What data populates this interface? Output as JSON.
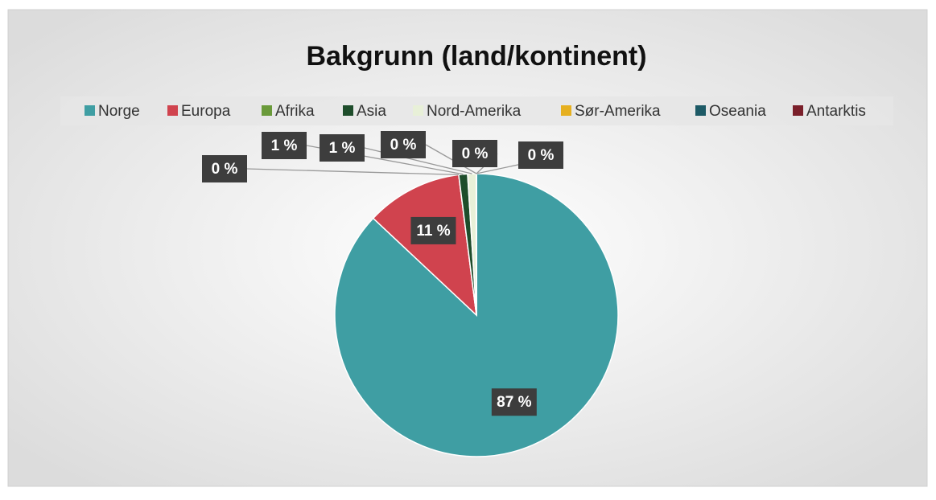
{
  "chart_data": {
    "type": "pie",
    "title": "Bakgrunn (land/kontinent)",
    "categories": [
      "Norge",
      "Europa",
      "Afrika",
      "Asia",
      "Nord-Amerika",
      "Sør-Amerika",
      "Oseania",
      "Antarktis"
    ],
    "values": [
      87,
      11,
      0,
      1,
      1,
      0,
      0,
      0
    ],
    "value_labels": [
      "87 %",
      "11 %",
      "0 %",
      "1 %",
      "1 %",
      "0 %",
      "0 %",
      "0 %"
    ],
    "colors": [
      "#3f9ea3",
      "#d0434e",
      "#6a9a3a",
      "#1e4d2b",
      "#e8f0d8",
      "#e6b020",
      "#1d5a66",
      "#7a1f2a"
    ],
    "legend": "top"
  }
}
